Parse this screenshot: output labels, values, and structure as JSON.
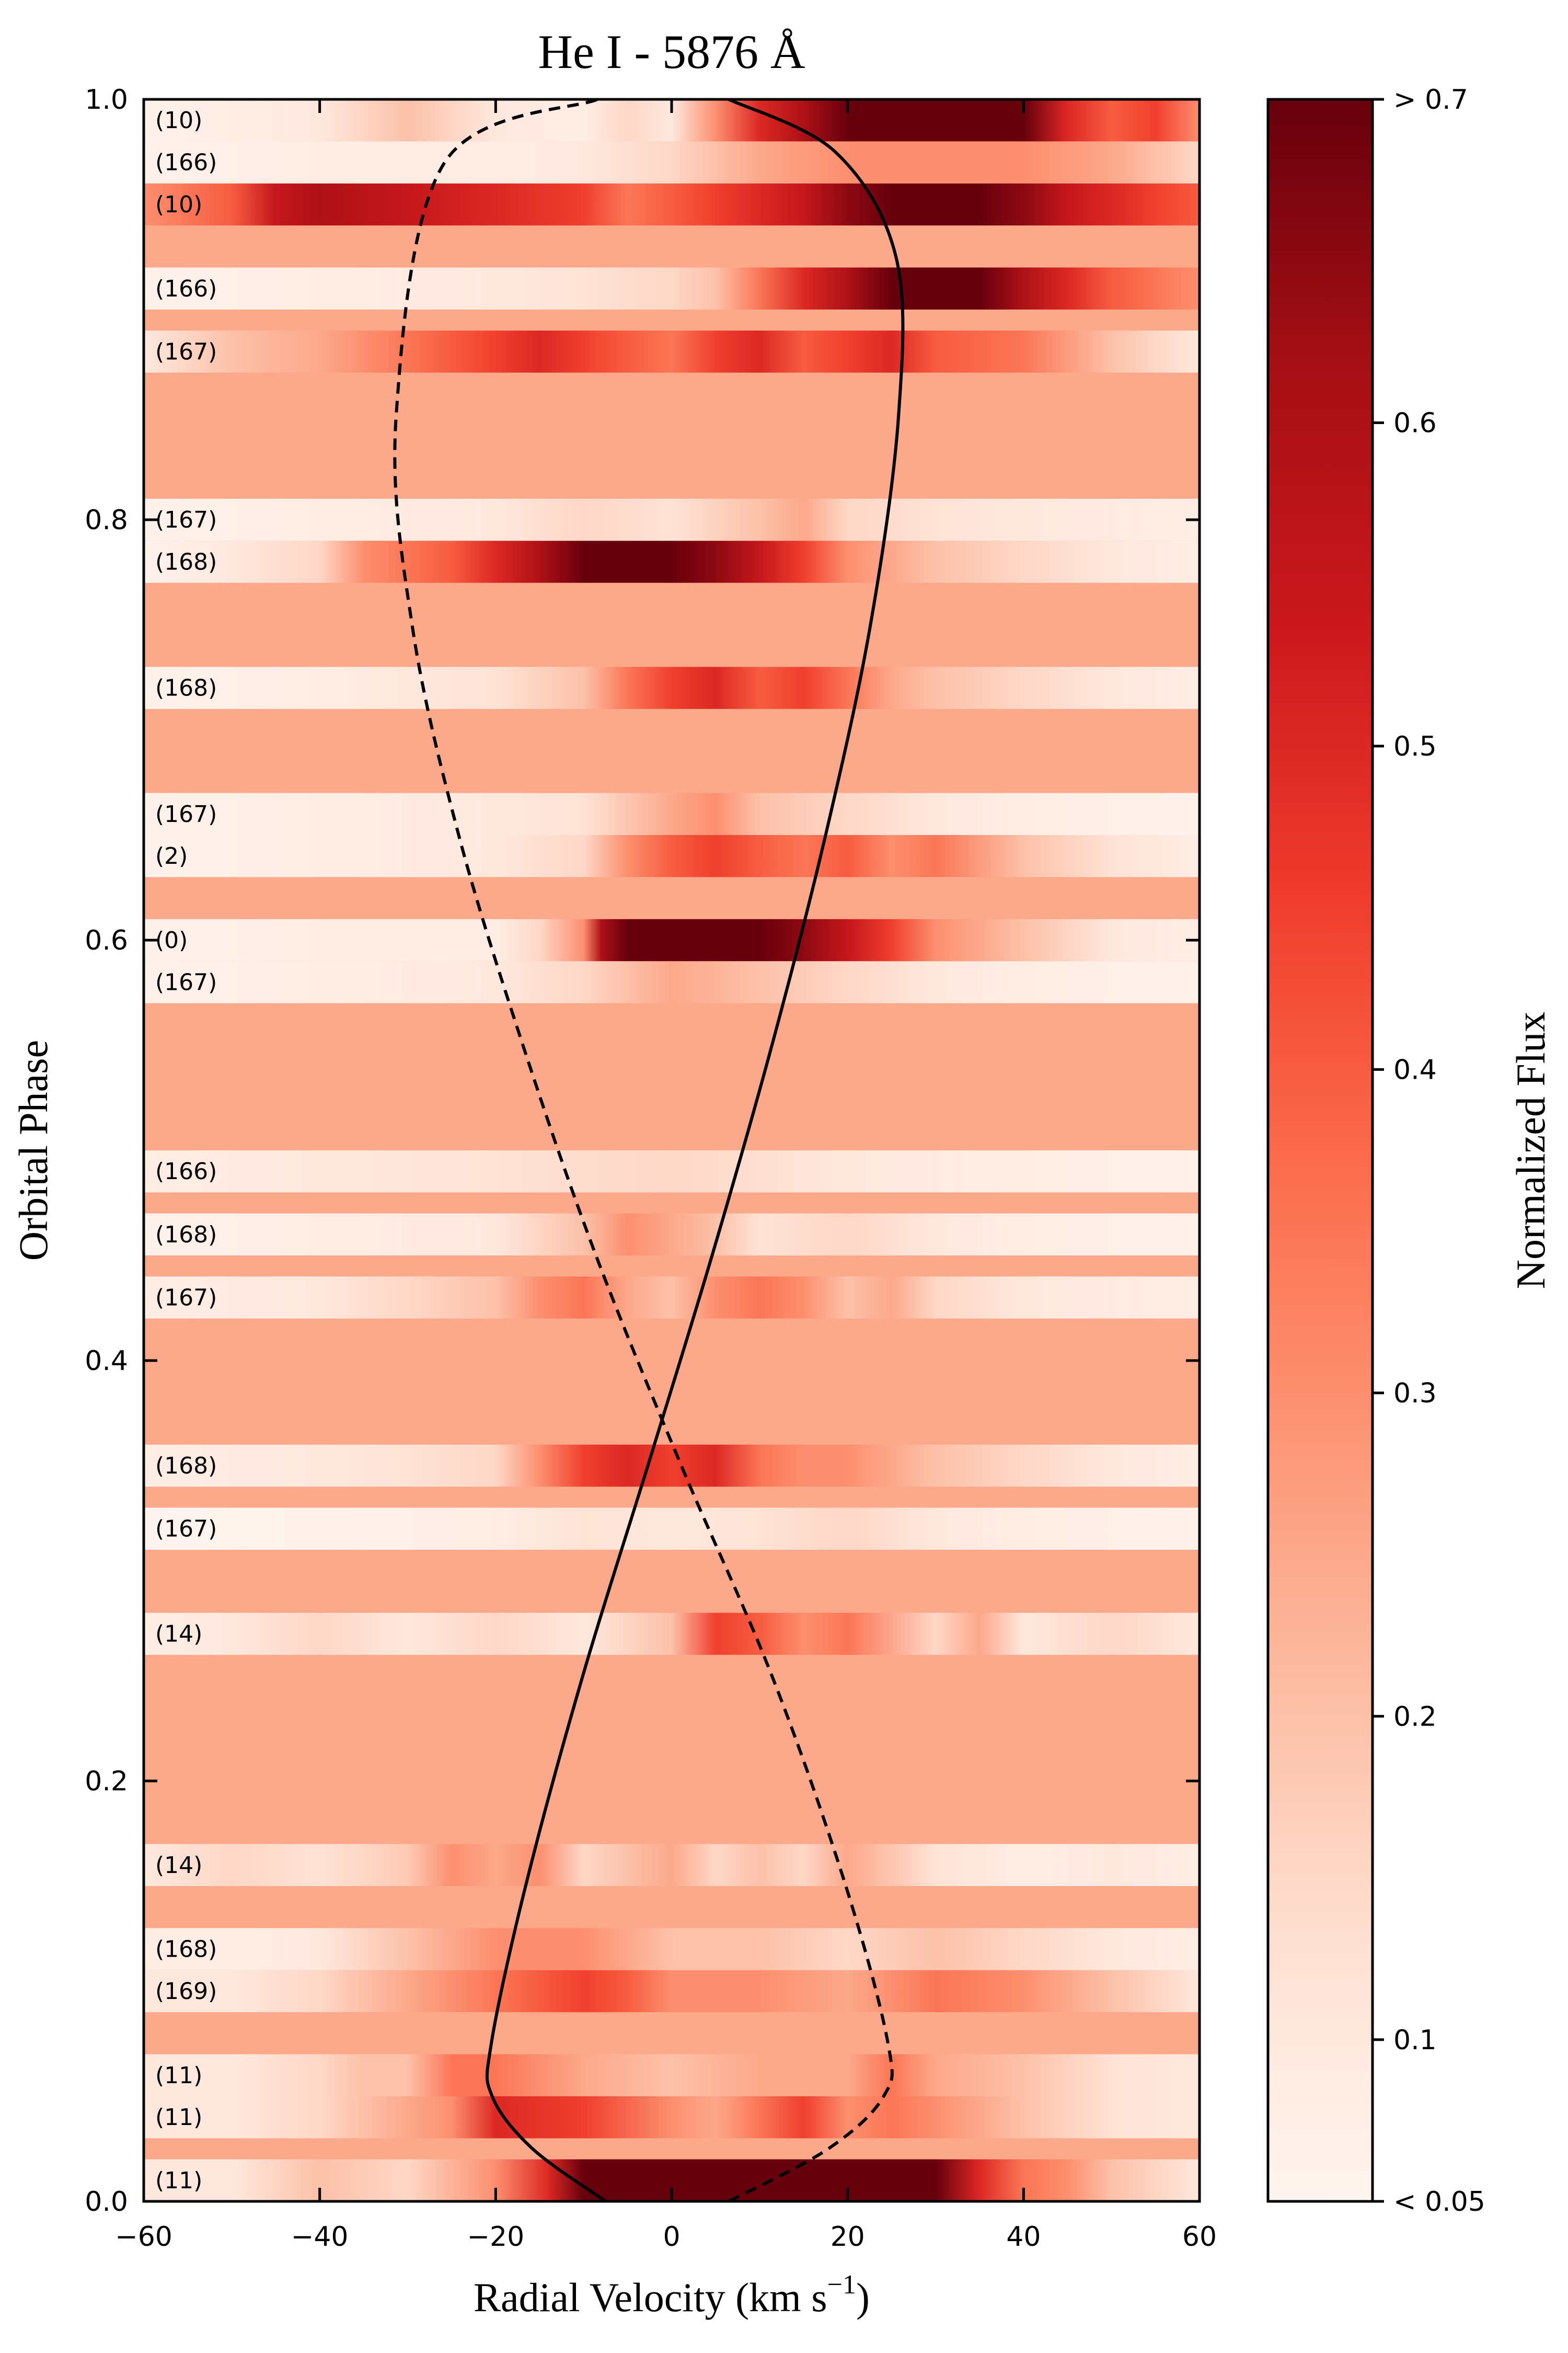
{
  "chart_data": {
    "type": "heatmap",
    "title": "He I - 5876 Å",
    "xlabel": "Radial Velocity (km s",
    "xlabel_sup": "−1",
    "xlabel_close": ")",
    "ylabel": "Orbital Phase",
    "xlim": [
      -60,
      60
    ],
    "ylim": [
      0.0,
      1.0
    ],
    "xticks": [
      -60,
      -40,
      -20,
      0,
      20,
      40,
      60
    ],
    "xtick_labels": [
      "−60",
      "−40",
      "−20",
      "0",
      "20",
      "40",
      "60"
    ],
    "yticks": [
      0.0,
      0.2,
      0.4,
      0.6,
      0.8,
      1.0
    ],
    "ytick_labels": [
      "0.0",
      "0.2",
      "0.4",
      "0.6",
      "0.8",
      "1.0"
    ],
    "grid": false,
    "background_value": 0.25,
    "colorbar": {
      "label": "Normalized Flux",
      "range": [
        0.05,
        0.7
      ],
      "ticks": [
        0.05,
        0.1,
        0.2,
        0.3,
        0.4,
        0.5,
        0.6,
        0.7
      ],
      "tick_labels": [
        "< 0.05",
        "0.1",
        "0.2",
        "0.3",
        "0.4",
        "0.5",
        "0.6",
        "> 0.7"
      ],
      "colormap": [
        "#fff5f0",
        "#fee0d2",
        "#fcbba1",
        "#fc9272",
        "#fb6a4a",
        "#ef3b2c",
        "#cb181d",
        "#a50f15",
        "#67000d"
      ]
    },
    "spectra": [
      {
        "label": "(11)",
        "phase_low": 0.0,
        "phase_high": 0.02,
        "velocities": [
          -60,
          -50,
          -40,
          -30,
          -20,
          -14,
          -10,
          -5,
          0,
          5,
          10,
          20,
          30,
          35,
          40,
          45,
          50,
          60
        ],
        "flux": [
          0.1,
          0.1,
          0.2,
          0.15,
          0.3,
          0.5,
          0.7,
          0.7,
          0.7,
          0.7,
          0.7,
          0.7,
          0.7,
          0.5,
          0.35,
          0.3,
          0.2,
          0.1
        ]
      },
      {
        "label": "(11)",
        "phase_low": 0.03,
        "phase_high": 0.05,
        "velocities": [
          -60,
          -50,
          -40,
          -30,
          -25,
          -20,
          -10,
          0,
          5,
          10,
          15,
          20,
          25,
          30,
          40,
          50,
          60
        ],
        "flux": [
          0.1,
          0.1,
          0.15,
          0.25,
          0.3,
          0.5,
          0.45,
          0.3,
          0.25,
          0.35,
          0.45,
          0.3,
          0.35,
          0.3,
          0.2,
          0.12,
          0.1
        ]
      },
      {
        "label": "(11)",
        "phase_low": 0.05,
        "phase_high": 0.07,
        "velocities": [
          -60,
          -50,
          -40,
          -35,
          -30,
          -25,
          -20,
          -10,
          0,
          10,
          20,
          25,
          30,
          40,
          50,
          60
        ],
        "flux": [
          0.1,
          0.1,
          0.15,
          0.2,
          0.2,
          0.35,
          0.35,
          0.25,
          0.2,
          0.25,
          0.25,
          0.35,
          0.25,
          0.2,
          0.12,
          0.1
        ]
      },
      {
        "label": "(169)",
        "phase_low": 0.09,
        "phase_high": 0.11,
        "velocities": [
          -60,
          -50,
          -40,
          -30,
          -20,
          -15,
          -10,
          -5,
          0,
          10,
          20,
          30,
          40,
          50,
          60
        ],
        "flux": [
          0.1,
          0.1,
          0.15,
          0.25,
          0.35,
          0.4,
          0.45,
          0.4,
          0.3,
          0.3,
          0.25,
          0.35,
          0.3,
          0.2,
          0.1
        ]
      },
      {
        "label": "(168)",
        "phase_low": 0.11,
        "phase_high": 0.13,
        "velocities": [
          -60,
          -50,
          -40,
          -30,
          -20,
          -10,
          0,
          10,
          20,
          30,
          40,
          50,
          60
        ],
        "flux": [
          0.08,
          0.08,
          0.1,
          0.2,
          0.3,
          0.3,
          0.2,
          0.2,
          0.15,
          0.2,
          0.15,
          0.1,
          0.08
        ]
      },
      {
        "label": "(14)",
        "phase_low": 0.15,
        "phase_high": 0.17,
        "velocities": [
          -60,
          -50,
          -40,
          -30,
          -25,
          -20,
          -15,
          -10,
          -5,
          0,
          5,
          10,
          15,
          20,
          30,
          40,
          50,
          60
        ],
        "flux": [
          0.1,
          0.15,
          0.12,
          0.18,
          0.3,
          0.25,
          0.3,
          0.15,
          0.2,
          0.25,
          0.15,
          0.2,
          0.15,
          0.25,
          0.12,
          0.08,
          0.1,
          0.08
        ]
      },
      {
        "label": "(14)",
        "phase_low": 0.26,
        "phase_high": 0.28,
        "velocities": [
          -60,
          -50,
          -40,
          -30,
          -20,
          -10,
          0,
          5,
          10,
          15,
          20,
          30,
          35,
          40,
          50,
          60
        ],
        "flux": [
          0.08,
          0.1,
          0.15,
          0.1,
          0.15,
          0.1,
          0.2,
          0.45,
          0.4,
          0.3,
          0.35,
          0.15,
          0.25,
          0.1,
          0.15,
          0.1
        ]
      },
      {
        "label": "(167)",
        "phase_low": 0.31,
        "phase_high": 0.33,
        "velocities": [
          -60,
          -40,
          -20,
          -10,
          0,
          10,
          20,
          30,
          40,
          60
        ],
        "flux": [
          0.05,
          0.06,
          0.08,
          0.12,
          0.1,
          0.12,
          0.15,
          0.1,
          0.08,
          0.06
        ]
      },
      {
        "label": "(168)",
        "phase_low": 0.34,
        "phase_high": 0.36,
        "velocities": [
          -60,
          -40,
          -30,
          -20,
          -15,
          -10,
          -5,
          0,
          5,
          10,
          15,
          20,
          30,
          40,
          50,
          60
        ],
        "flux": [
          0.08,
          0.1,
          0.12,
          0.15,
          0.3,
          0.45,
          0.5,
          0.45,
          0.5,
          0.35,
          0.3,
          0.3,
          0.2,
          0.15,
          0.1,
          0.08
        ]
      },
      {
        "label": "(167)",
        "phase_low": 0.42,
        "phase_high": 0.44,
        "velocities": [
          -60,
          -40,
          -30,
          -20,
          -15,
          -10,
          -5,
          0,
          5,
          10,
          15,
          20,
          25,
          30,
          40,
          60
        ],
        "flux": [
          0.08,
          0.1,
          0.15,
          0.2,
          0.3,
          0.35,
          0.25,
          0.2,
          0.3,
          0.35,
          0.3,
          0.2,
          0.25,
          0.15,
          0.1,
          0.08
        ]
      },
      {
        "label": "(168)",
        "phase_low": 0.45,
        "phase_high": 0.47,
        "velocities": [
          -60,
          -40,
          -20,
          -10,
          -5,
          0,
          5,
          10,
          20,
          30,
          40,
          60
        ],
        "flux": [
          0.06,
          0.08,
          0.1,
          0.2,
          0.3,
          0.25,
          0.2,
          0.12,
          0.15,
          0.1,
          0.08,
          0.06
        ]
      },
      {
        "label": "(166)",
        "phase_low": 0.48,
        "phase_high": 0.5,
        "velocities": [
          -60,
          -40,
          -20,
          0,
          20,
          40,
          60
        ],
        "flux": [
          0.08,
          0.1,
          0.12,
          0.15,
          0.1,
          0.08,
          0.06
        ]
      },
      {
        "label": "(167)",
        "phase_low": 0.57,
        "phase_high": 0.59,
        "velocities": [
          -60,
          -40,
          -20,
          -10,
          0,
          10,
          20,
          30,
          40,
          60
        ],
        "flux": [
          0.06,
          0.08,
          0.1,
          0.15,
          0.25,
          0.2,
          0.15,
          0.1,
          0.08,
          0.06
        ]
      },
      {
        "label": "(0)",
        "phase_low": 0.59,
        "phase_high": 0.61,
        "velocities": [
          -60,
          -40,
          -20,
          -15,
          -10,
          -8,
          -5,
          0,
          5,
          10,
          15,
          20,
          25,
          30,
          40,
          50,
          60
        ],
        "flux": [
          0.06,
          0.08,
          0.08,
          0.15,
          0.3,
          0.6,
          0.7,
          0.7,
          0.7,
          0.7,
          0.65,
          0.55,
          0.45,
          0.3,
          0.2,
          0.1,
          0.08
        ]
      },
      {
        "label": "(2)",
        "phase_low": 0.63,
        "phase_high": 0.65,
        "velocities": [
          -60,
          -40,
          -20,
          -10,
          -5,
          0,
          5,
          10,
          15,
          20,
          25,
          30,
          40,
          50,
          60
        ],
        "flux": [
          0.06,
          0.08,
          0.1,
          0.15,
          0.3,
          0.4,
          0.45,
          0.4,
          0.35,
          0.4,
          0.3,
          0.35,
          0.2,
          0.12,
          0.08
        ]
      },
      {
        "label": "(167)",
        "phase_low": 0.65,
        "phase_high": 0.67,
        "velocities": [
          -60,
          -40,
          -20,
          -10,
          0,
          5,
          10,
          20,
          30,
          40,
          60
        ],
        "flux": [
          0.06,
          0.08,
          0.1,
          0.12,
          0.25,
          0.3,
          0.2,
          0.15,
          0.1,
          0.08,
          0.06
        ]
      },
      {
        "label": "(168)",
        "phase_low": 0.71,
        "phase_high": 0.73,
        "velocities": [
          -60,
          -40,
          -20,
          -10,
          -5,
          0,
          5,
          10,
          15,
          20,
          25,
          30,
          40,
          50,
          60
        ],
        "flux": [
          0.06,
          0.08,
          0.12,
          0.2,
          0.35,
          0.45,
          0.5,
          0.4,
          0.45,
          0.35,
          0.25,
          0.2,
          0.15,
          0.1,
          0.08
        ]
      },
      {
        "label": "(168)",
        "phase_low": 0.77,
        "phase_high": 0.79,
        "velocities": [
          -60,
          -50,
          -40,
          -35,
          -30,
          -25,
          -20,
          -15,
          -10,
          -5,
          0,
          5,
          10,
          15,
          20,
          30,
          40,
          50,
          60
        ],
        "flux": [
          0.06,
          0.1,
          0.15,
          0.3,
          0.35,
          0.4,
          0.5,
          0.6,
          0.7,
          0.7,
          0.7,
          0.65,
          0.55,
          0.45,
          0.3,
          0.2,
          0.15,
          0.1,
          0.08
        ]
      },
      {
        "label": "(167)",
        "phase_low": 0.79,
        "phase_high": 0.81,
        "velocities": [
          -60,
          -40,
          -20,
          -10,
          0,
          10,
          15,
          20,
          30,
          40,
          60
        ],
        "flux": [
          0.06,
          0.08,
          0.1,
          0.15,
          0.12,
          0.2,
          0.25,
          0.15,
          0.12,
          0.1,
          0.08
        ]
      },
      {
        "label": "(167)",
        "phase_low": 0.87,
        "phase_high": 0.89,
        "velocities": [
          -60,
          -50,
          -40,
          -30,
          -25,
          -20,
          -15,
          -10,
          -5,
          0,
          5,
          10,
          15,
          20,
          25,
          30,
          40,
          50,
          55,
          60
        ],
        "flux": [
          0.1,
          0.2,
          0.25,
          0.35,
          0.4,
          0.45,
          0.5,
          0.45,
          0.4,
          0.35,
          0.45,
          0.5,
          0.4,
          0.45,
          0.5,
          0.4,
          0.35,
          0.2,
          0.15,
          0.1
        ]
      },
      {
        "label": "(166)",
        "phase_low": 0.9,
        "phase_high": 0.92,
        "velocities": [
          -60,
          -40,
          -20,
          -10,
          0,
          5,
          10,
          15,
          20,
          25,
          30,
          35,
          40,
          45,
          50,
          55,
          60
        ],
        "flux": [
          0.06,
          0.08,
          0.1,
          0.12,
          0.15,
          0.2,
          0.35,
          0.5,
          0.6,
          0.7,
          0.7,
          0.7,
          0.6,
          0.5,
          0.4,
          0.35,
          0.3
        ]
      },
      {
        "label": "(10)",
        "phase_low": 0.94,
        "phase_high": 0.96,
        "velocities": [
          -60,
          -50,
          -45,
          -40,
          -30,
          -20,
          -10,
          -5,
          0,
          5,
          10,
          15,
          20,
          25,
          30,
          35,
          40,
          45,
          50,
          55,
          60
        ],
        "flux": [
          0.3,
          0.4,
          0.55,
          0.6,
          0.55,
          0.5,
          0.45,
          0.35,
          0.4,
          0.45,
          0.5,
          0.55,
          0.65,
          0.7,
          0.7,
          0.7,
          0.65,
          0.55,
          0.5,
          0.45,
          0.4
        ]
      },
      {
        "label": "(166)",
        "phase_low": 0.96,
        "phase_high": 0.98,
        "velocities": [
          -60,
          -40,
          -20,
          -10,
          0,
          10,
          20,
          30,
          40,
          50,
          60
        ],
        "flux": [
          0.06,
          0.08,
          0.08,
          0.1,
          0.15,
          0.25,
          0.3,
          0.3,
          0.3,
          0.25,
          0.15
        ]
      },
      {
        "label": "(10)",
        "phase_low": 0.98,
        "phase_high": 1.0,
        "velocities": [
          -60,
          -50,
          -40,
          -30,
          -20,
          -10,
          -5,
          0,
          5,
          10,
          15,
          20,
          30,
          40,
          45,
          50,
          55,
          60
        ],
        "flux": [
          0.06,
          0.08,
          0.1,
          0.2,
          0.1,
          0.08,
          0.15,
          0.1,
          0.3,
          0.5,
          0.6,
          0.7,
          0.7,
          0.7,
          0.5,
          0.4,
          0.45,
          0.3
        ]
      }
    ],
    "series": [
      {
        "style": "solid",
        "x": [
          -7.5,
          -15.8,
          -20.4,
          -20.5,
          -16.6,
          -10.1,
          -2.7,
          4.6,
          11.4,
          17.5,
          22.6,
          25.8,
          25.5,
          18.6,
          6.5
        ],
        "y": [
          0.0,
          0.025,
          0.05,
          0.075,
          0.15,
          0.25,
          0.35,
          0.45,
          0.55,
          0.65,
          0.75,
          0.85,
          0.925,
          0.975,
          1.0
        ]
      },
      {
        "style": "dashed",
        "x": [
          6.5,
          17.8,
          24.1,
          24.6,
          19.8,
          11.4,
          1.1,
          -8.6,
          -16.9,
          -24.2,
          -29.5,
          -31.3,
          -25.8,
          -8.4
        ],
        "y": [
          0.0,
          0.025,
          0.05,
          0.075,
          0.15,
          0.25,
          0.35,
          0.45,
          0.55,
          0.65,
          0.75,
          0.85,
          0.97,
          1.0
        ]
      }
    ]
  }
}
